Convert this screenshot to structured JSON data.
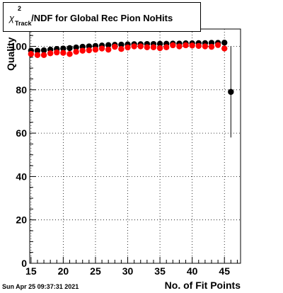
{
  "chart_data": {
    "type": "scatter",
    "title": {
      "symbol": "χ",
      "superscript": "2",
      "subscript": "Track",
      "rest": "/NDF for Global Rec Pion NoHits"
    },
    "xlabel": "No. of Fit Points",
    "ylabel": "Quality",
    "timestamp": "Sun Apr 25 09:37:31 2021",
    "xlim": [
      14.8,
      47.5
    ],
    "ylim": [
      0,
      108
    ],
    "xticks": [
      15,
      20,
      25,
      30,
      35,
      40,
      45
    ],
    "yticks": [
      0,
      20,
      40,
      60,
      80,
      100
    ],
    "grid": true,
    "series": [
      {
        "color": "#000000",
        "x": [
          15,
          16,
          17,
          18,
          19,
          20,
          21,
          22,
          23,
          24,
          25,
          26,
          27,
          28,
          29,
          30,
          31,
          32,
          33,
          34,
          35,
          36,
          37,
          38,
          39,
          40,
          41,
          42,
          43,
          44,
          45,
          46
        ],
        "y": [
          98.0,
          98.0,
          98.2,
          98.5,
          98.8,
          99.0,
          99.2,
          99.5,
          99.8,
          100.0,
          100.2,
          100.4,
          100.6,
          100.7,
          100.8,
          100.9,
          101.0,
          101.0,
          101.1,
          101.1,
          101.2,
          101.2,
          101.3,
          101.3,
          101.4,
          101.4,
          101.5,
          101.5,
          101.6,
          101.6,
          101.7,
          79.0
        ],
        "yerr": [
          0,
          0,
          0,
          0,
          0,
          0,
          0,
          0,
          0,
          0,
          0,
          0,
          0,
          0,
          0,
          0,
          0,
          0,
          0,
          0,
          0,
          0,
          0,
          0,
          0,
          0,
          0,
          0,
          0,
          0,
          0,
          21
        ]
      },
      {
        "color": "#ff0000",
        "x": [
          15,
          16,
          17,
          18,
          19,
          20,
          21,
          22,
          23,
          24,
          25,
          26,
          27,
          28,
          29,
          30,
          31,
          32,
          33,
          34,
          35,
          36,
          37,
          38,
          39,
          40,
          41,
          42,
          43,
          44,
          45
        ],
        "y": [
          96.5,
          96.0,
          96.0,
          96.8,
          97.2,
          97.0,
          96.5,
          97.5,
          98.0,
          98.2,
          98.5,
          99.0,
          98.5,
          99.8,
          98.8,
          99.5,
          100.0,
          100.0,
          99.6,
          99.6,
          99.2,
          99.6,
          100.5,
          100.0,
          100.5,
          100.4,
          100.2,
          100.0,
          99.8,
          100.6,
          99.0
        ],
        "yerr": []
      }
    ]
  }
}
